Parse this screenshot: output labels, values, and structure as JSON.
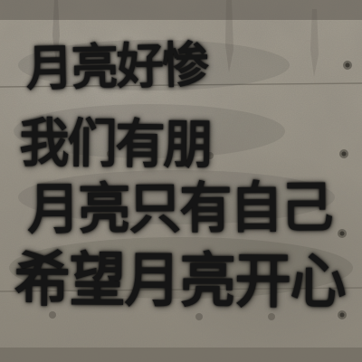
{
  "graffiti": {
    "lines": [
      "月亮好惨",
      "我们有朋",
      "月亮只有自己",
      "希望月亮开心"
    ],
    "ink_color": "#151515"
  },
  "wall": {
    "base_color": "#9d978a",
    "material": "concrete"
  }
}
